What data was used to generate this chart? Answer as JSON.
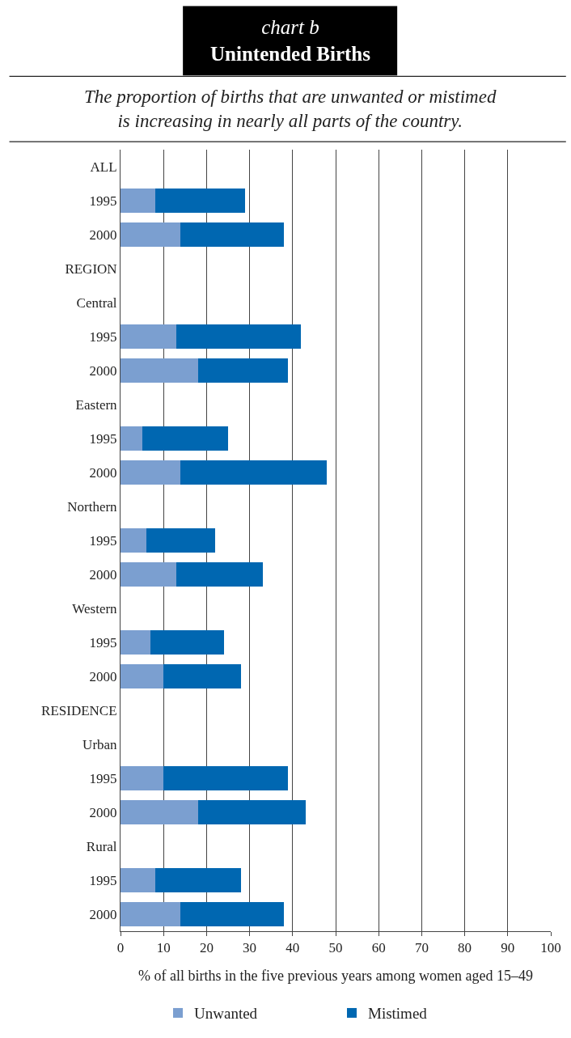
{
  "chart_data": {
    "type": "bar",
    "orientation": "horizontal",
    "stacked": true,
    "title": "chart b\nUnintended Births",
    "subtitle": "The proportion of births that are unwanted or mistimed\nis increasing in nearly all parts of the country.",
    "xlabel": "% of all births in the five previous years among women aged 15–49",
    "categories": [
      "ALL",
      "1995",
      "2000",
      "REGION",
      "Central",
      "1995",
      "2000",
      "Eastern",
      "1995",
      "2000",
      "Northern",
      "1995",
      "2000",
      "Western",
      "1995",
      "2000",
      "RESIDENCE",
      "Urban",
      "1995",
      "2000",
      "Rural",
      "1995",
      "2000"
    ],
    "series": [
      {
        "name": "Unwanted",
        "color": "#7b9fd0",
        "values": [
          null,
          8,
          14,
          null,
          null,
          13,
          18,
          null,
          5,
          14,
          null,
          6,
          13,
          null,
          7,
          10,
          null,
          null,
          10,
          18,
          null,
          8,
          14
        ]
      },
      {
        "name": "Mistimed",
        "color": "#0067b1",
        "values": [
          null,
          21,
          24,
          null,
          null,
          29,
          21,
          null,
          20,
          34,
          null,
          16,
          20,
          null,
          17,
          18,
          null,
          null,
          29,
          25,
          null,
          20,
          24
        ]
      }
    ],
    "xlim": [
      0,
      100
    ],
    "xticks": [
      0,
      10,
      20,
      30,
      40,
      50,
      60,
      70,
      80,
      90,
      100
    ],
    "grid": "x",
    "legend": "bottom"
  }
}
